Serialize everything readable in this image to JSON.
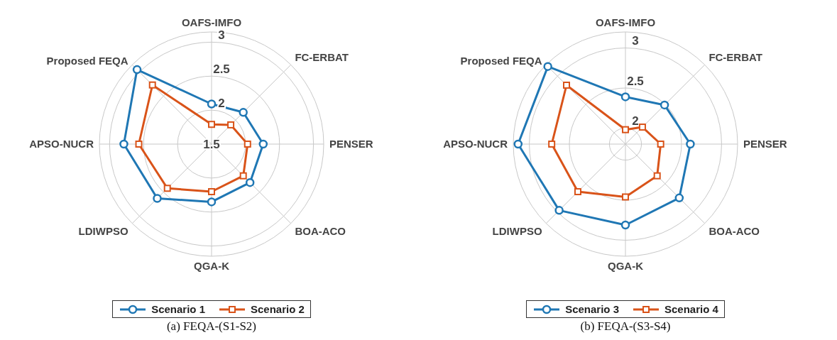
{
  "chart_data": [
    {
      "type": "radar",
      "title": "(a) FEQA-(S1-S2)",
      "categories": [
        "OAFS-IMFO",
        "FC-ERBAT",
        "PENSER",
        "BOA-ACO",
        "QGA-K",
        "LDIWPSO",
        "APSO-NUCR",
        "Proposed FEQA"
      ],
      "ylim": [
        1.5,
        3.15
      ],
      "yticks": [
        1.5,
        2,
        2.5,
        3
      ],
      "grid": true,
      "legend": "bottom",
      "series": [
        {
          "name": "Scenario 1",
          "color": "#1f77b4",
          "marker": "circle",
          "values": [
            2.09,
            2.16,
            2.26,
            2.3,
            2.35,
            2.63,
            2.79,
            3.05
          ]
        },
        {
          "name": "Scenario 2",
          "color": "#d95319",
          "marker": "square",
          "values": [
            1.79,
            1.9,
            2.03,
            2.16,
            2.2,
            2.42,
            2.57,
            2.73
          ]
        }
      ]
    },
    {
      "type": "radar",
      "title": "(b) FEQA-(S3-S4)",
      "categories": [
        "OAFS-IMFO",
        "FC-ERBAT",
        "PENSER",
        "BOA-ACO",
        "QGA-K",
        "LDIWPSO",
        "APSO-NUCR",
        "Proposed FEQA"
      ],
      "ylim": [
        1.8,
        3.2
      ],
      "yticks": [
        2,
        2.5,
        3
      ],
      "grid": true,
      "legend": "bottom",
      "series": [
        {
          "name": "Scenario 3",
          "color": "#1f77b4",
          "marker": "circle",
          "values": [
            2.39,
            2.49,
            2.61,
            2.75,
            2.81,
            2.97,
            3.14,
            3.17
          ]
        },
        {
          "name": "Scenario 4",
          "color": "#d95319",
          "marker": "square",
          "values": [
            1.98,
            2.1,
            2.24,
            2.36,
            2.46,
            2.64,
            2.72,
            2.84
          ]
        }
      ]
    }
  ]
}
